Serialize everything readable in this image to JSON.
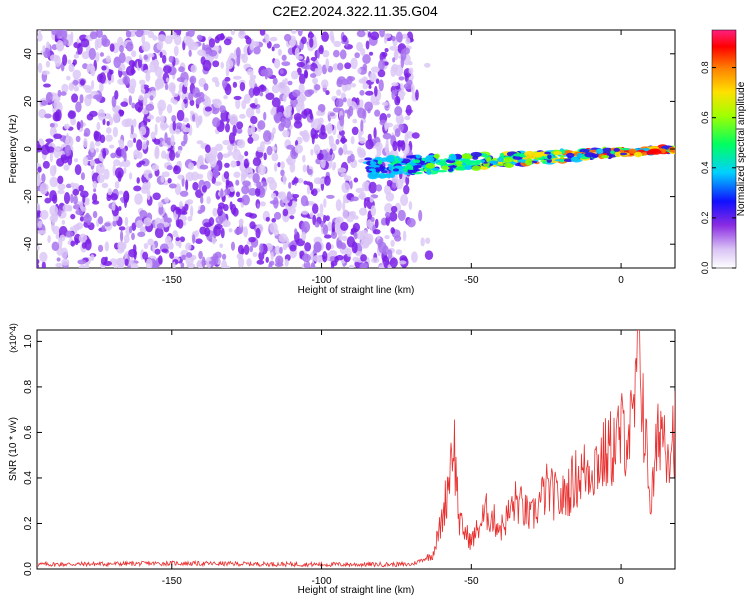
{
  "title": "C2E2.2024.322.11.35.G04",
  "chart_data": [
    {
      "type": "heatmap",
      "xlabel": "Height of straight line (km)",
      "ylabel": "Frequency (Hz)",
      "xlim": [
        -195,
        18
      ],
      "ylim": [
        -50,
        50
      ],
      "xticks": [
        -150,
        -100,
        -50,
        0
      ],
      "yticks": [
        -40,
        -20,
        0,
        20,
        40
      ],
      "colorbar": {
        "label": "Normalized spectral amplitude",
        "range": [
          0,
          0.95
        ],
        "ticks": [
          0.0,
          0.2,
          0.4,
          0.6,
          0.8
        ]
      },
      "features": [
        {
          "x_range": [
            -195,
            -70
          ],
          "frequency_range": [
            -50,
            50
          ],
          "amplitude": 0.1
        },
        {
          "x_range": [
            -85,
            18
          ],
          "frequency_center": [
            -8,
            0
          ],
          "amplitude_range": [
            0.2,
            0.95
          ]
        }
      ]
    },
    {
      "type": "line",
      "xlabel": "Height of straight line (km)",
      "ylabel": "SNR (10 * v/v)",
      "yscale_label": "(x10^4)",
      "xlim": [
        -195,
        18
      ],
      "ylim": [
        0,
        1.05
      ],
      "xticks": [
        -150,
        -100,
        -50,
        0
      ],
      "yticks": [
        0.0,
        0.2,
        0.4,
        0.6,
        0.8,
        1.0
      ],
      "series": [
        {
          "x": [
            -195,
            -150,
            -100,
            -70,
            -63,
            -60,
            -58,
            -56,
            -54,
            -50,
            -45,
            -40,
            -35,
            -30,
            -25,
            -20,
            -15,
            -10,
            -5,
            -2,
            2,
            4,
            6,
            8,
            10,
            13,
            16,
            18
          ],
          "values": [
            0.02,
            0.025,
            0.02,
            0.02,
            0.06,
            0.2,
            0.35,
            0.6,
            0.2,
            0.12,
            0.25,
            0.18,
            0.3,
            0.22,
            0.35,
            0.3,
            0.4,
            0.45,
            0.5,
            0.55,
            0.62,
            0.6,
            1.05,
            0.58,
            0.28,
            0.65,
            0.55,
            0.62
          ]
        }
      ],
      "color": "#e8302f"
    }
  ]
}
